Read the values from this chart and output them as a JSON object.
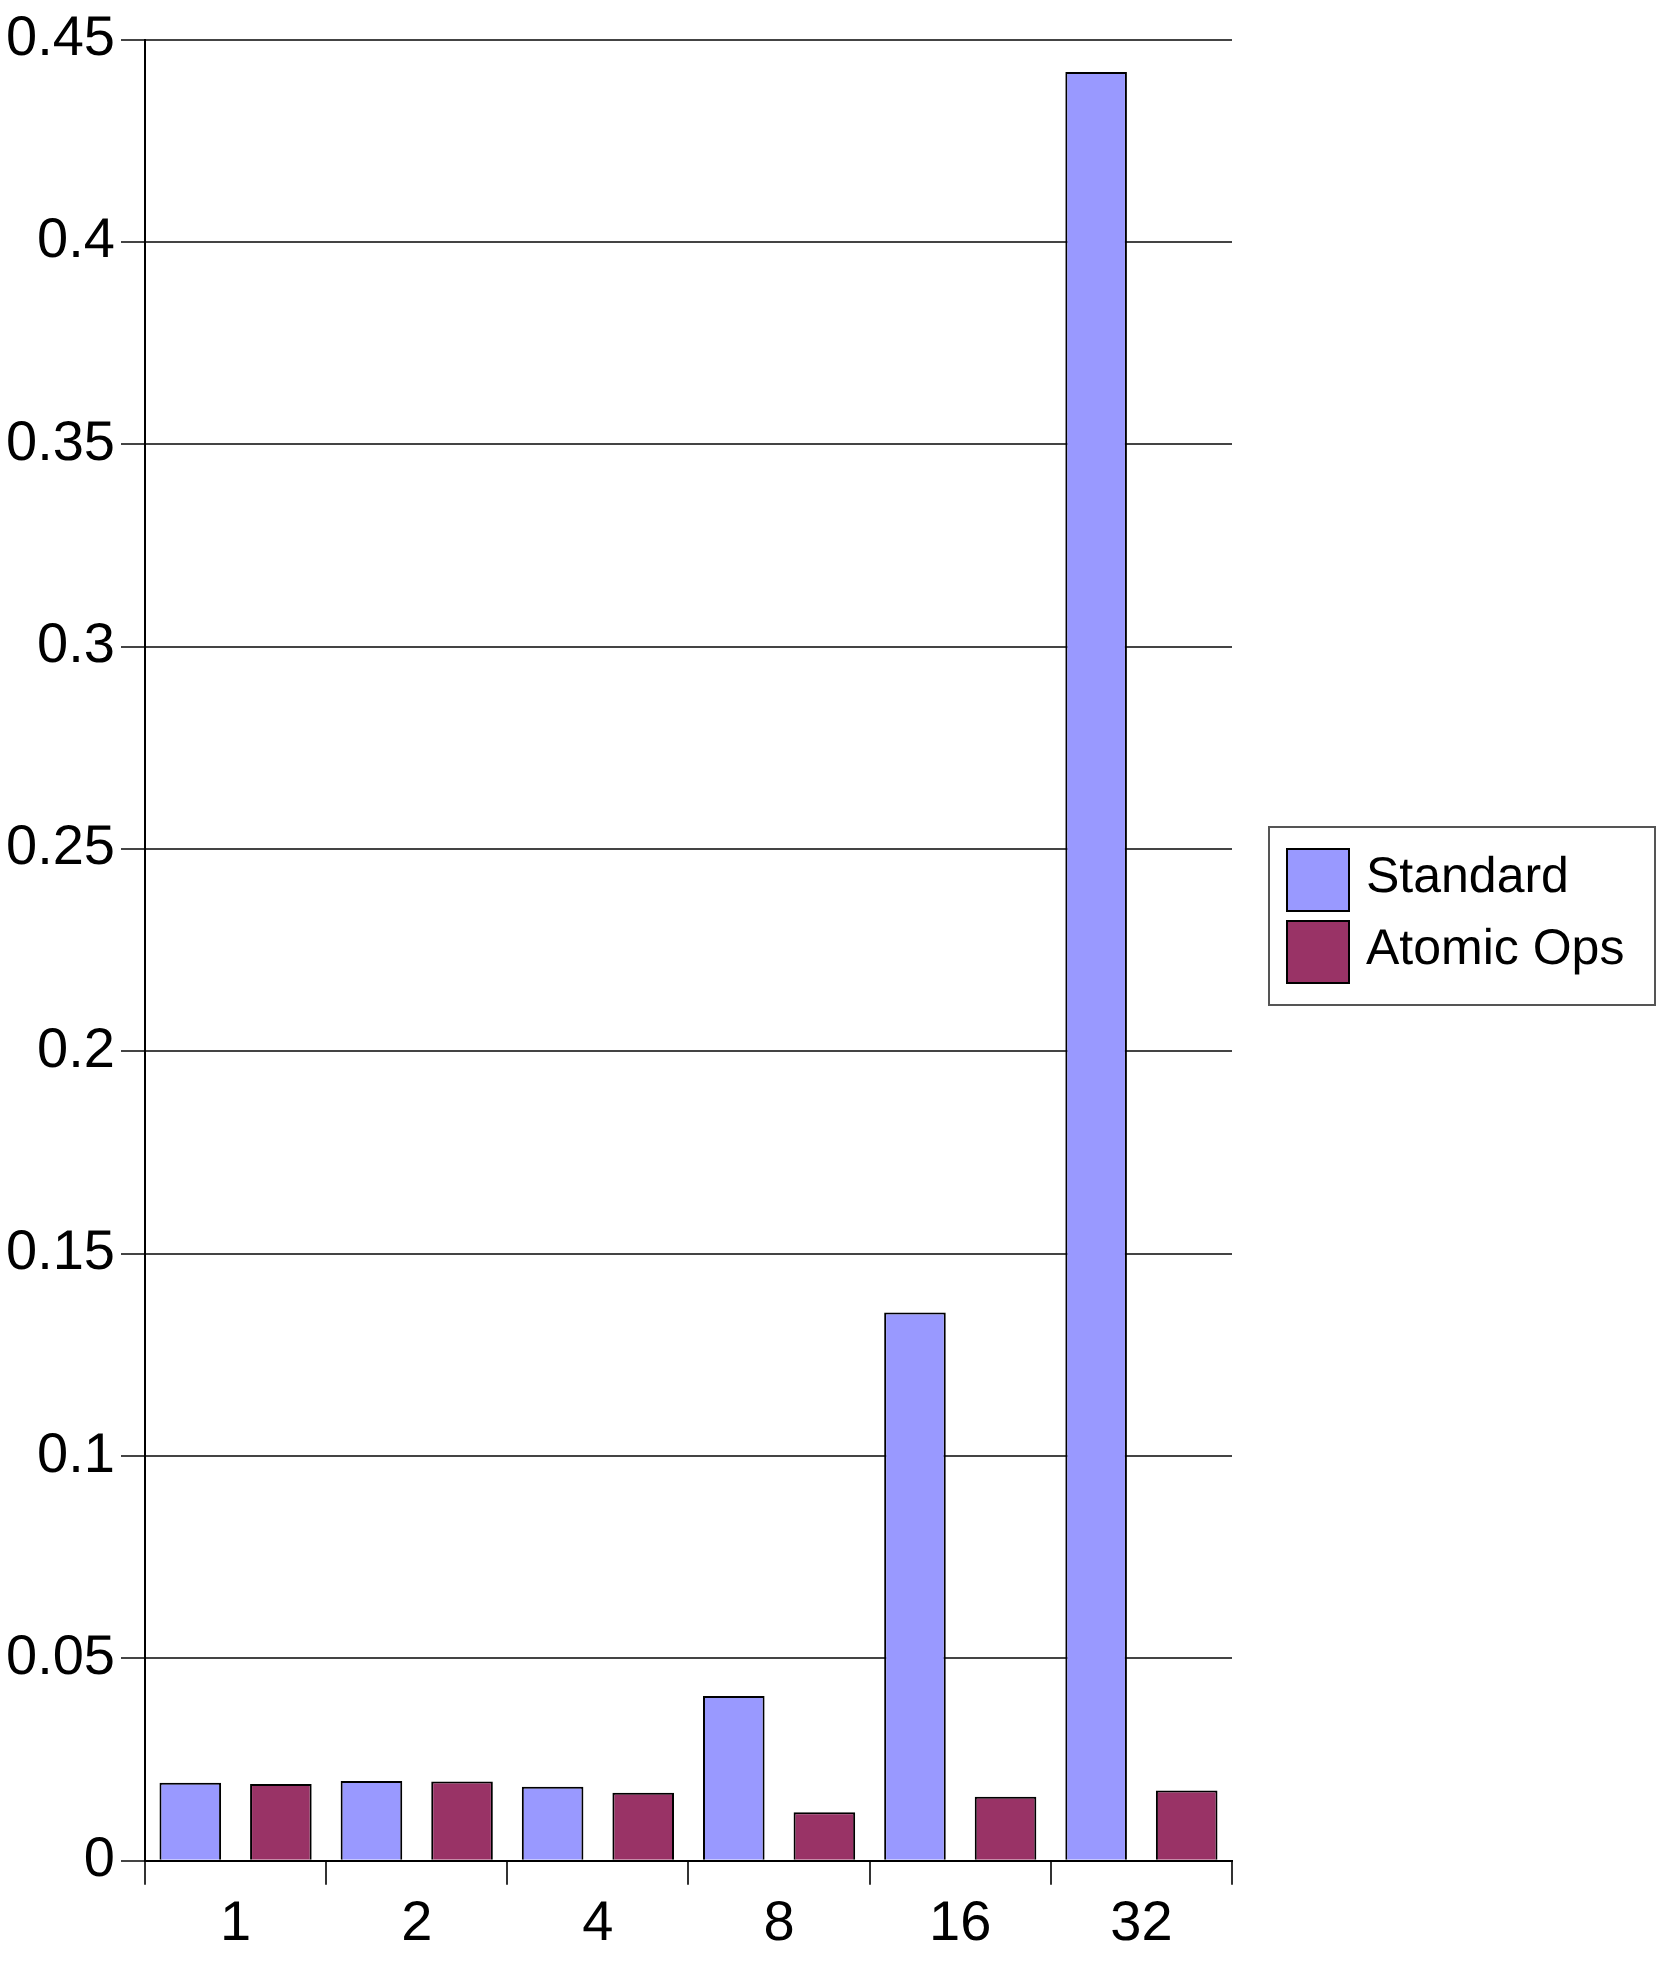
{
  "chart_data": {
    "type": "bar",
    "categories": [
      "1",
      "2",
      "4",
      "8",
      "16",
      "32"
    ],
    "series": [
      {
        "name": "Standard",
        "color": "#9999ff",
        "values": [
          0.0193,
          0.0197,
          0.0183,
          0.0407,
          0.1355,
          0.442
        ]
      },
      {
        "name": "Atomic Ops",
        "color": "#993366",
        "values": [
          0.019,
          0.0196,
          0.0168,
          0.012,
          0.0158,
          0.0174
        ]
      }
    ],
    "ylim": [
      0,
      0.45
    ],
    "yticks": [
      0,
      0.05,
      0.1,
      0.15,
      0.2,
      0.25,
      0.3,
      0.35,
      0.4,
      0.45
    ],
    "grid": "y",
    "legend": "right"
  }
}
